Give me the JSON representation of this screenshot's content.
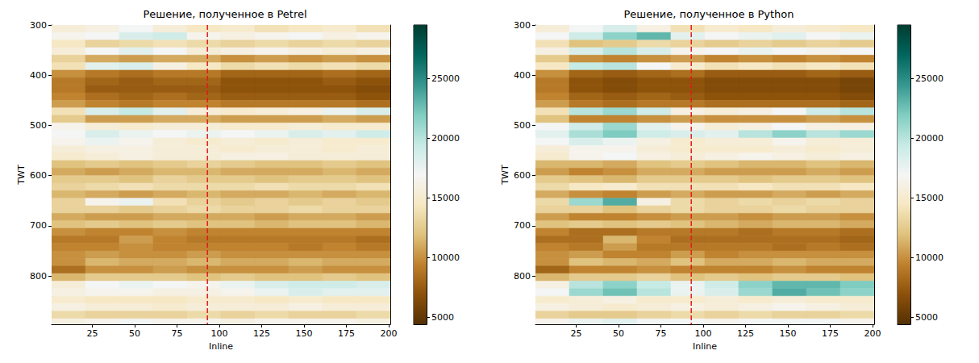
{
  "chart_data": [
    {
      "type": "heatmap",
      "title": "Решение, полученное в Petrel",
      "xlabel": "Inline",
      "ylabel": "TWT",
      "xlim": [
        1,
        201
      ],
      "ylim": [
        300,
        896
      ],
      "xticks": [
        25,
        50,
        75,
        100,
        125,
        150,
        175,
        200
      ],
      "yticks": [
        300,
        400,
        500,
        600,
        700,
        800
      ],
      "x": [
        11,
        31,
        51,
        71,
        91,
        111,
        131,
        151,
        171,
        191
      ],
      "y": [
        307.5,
        322.5,
        337.5,
        352.5,
        367.5,
        382.5,
        397.5,
        412.5,
        427.5,
        442.5,
        457.5,
        472.5,
        487.5,
        502.5,
        517.5,
        532.5,
        547.5,
        562.5,
        577.5,
        592.5,
        607.5,
        622.5,
        637.5,
        652.5,
        667.5,
        682.5,
        697.5,
        712.5,
        727.5,
        742.5,
        757.5,
        772.5,
        787.5,
        802.5,
        817.5,
        832.5,
        847.5,
        862.5,
        877.5,
        892.5
      ],
      "values": [
        [
          15500,
          16000,
          17000,
          15500,
          14500,
          15000,
          14000,
          14500,
          15000,
          14000
        ],
        [
          16500,
          17000,
          18500,
          19000,
          16500,
          16000,
          16500,
          17000,
          16000,
          16500
        ],
        [
          14500,
          13000,
          13500,
          14000,
          13500,
          13000,
          13500,
          13000,
          13500,
          13000
        ],
        [
          15500,
          17000,
          18000,
          17000,
          15500,
          16000,
          16500,
          16000,
          15500,
          16000
        ],
        [
          13000,
          11000,
          10500,
          11000,
          11000,
          10000,
          10500,
          10000,
          10500,
          10000
        ],
        [
          14000,
          18000,
          18500,
          16000,
          14500,
          13500,
          14000,
          13500,
          14000,
          13500
        ],
        [
          10000,
          9000,
          8500,
          9000,
          9000,
          8000,
          8000,
          8000,
          8500,
          8000
        ],
        [
          9000,
          8000,
          7500,
          8000,
          8000,
          7000,
          7000,
          7000,
          7500,
          7000
        ],
        [
          9000,
          7500,
          7500,
          7500,
          7500,
          7000,
          7000,
          7000,
          7000,
          6500
        ],
        [
          9500,
          8500,
          8000,
          8500,
          8000,
          7500,
          7500,
          7500,
          7500,
          7000
        ],
        [
          10500,
          9500,
          9000,
          9500,
          9500,
          9000,
          9000,
          9000,
          9000,
          8500
        ],
        [
          14000,
          18500,
          19500,
          18000,
          15500,
          15000,
          15500,
          16000,
          17500,
          18500
        ],
        [
          12500,
          10500,
          10500,
          11000,
          11000,
          10500,
          10500,
          10500,
          11000,
          10500
        ],
        [
          16500,
          15500,
          15000,
          15500,
          15500,
          15000,
          15000,
          15500,
          15000,
          15000
        ],
        [
          17000,
          18500,
          17500,
          17000,
          17500,
          17000,
          17500,
          18500,
          18000,
          19000
        ],
        [
          16500,
          17500,
          16500,
          15500,
          15000,
          15500,
          15000,
          15500,
          15000,
          15000
        ],
        [
          15500,
          16000,
          16000,
          15500,
          15500,
          15000,
          15500,
          15500,
          15000,
          15500
        ],
        [
          15000,
          15500,
          16000,
          15500,
          15500,
          16000,
          16000,
          15500,
          15500,
          15500
        ],
        [
          12000,
          12500,
          12000,
          12500,
          13000,
          12500,
          12000,
          12000,
          12500,
          12000
        ],
        [
          11000,
          10500,
          11000,
          11500,
          11500,
          11000,
          11000,
          11000,
          11500,
          11000
        ],
        [
          12500,
          12500,
          12000,
          13000,
          12500,
          12500,
          12000,
          12500,
          12500,
          12000
        ],
        [
          13000,
          13500,
          14000,
          13500,
          13500,
          13500,
          14000,
          13500,
          13500,
          14000
        ],
        [
          11500,
          11000,
          10500,
          11000,
          11500,
          11000,
          11000,
          11500,
          11000,
          11500
        ],
        [
          13000,
          16500,
          17500,
          14000,
          13000,
          12500,
          13000,
          12500,
          13000,
          12500
        ],
        [
          13000,
          13000,
          12500,
          13000,
          13500,
          13000,
          13000,
          13500,
          13000,
          13000
        ],
        [
          11000,
          10500,
          10500,
          11000,
          11000,
          11000,
          10500,
          11000,
          11000,
          10500
        ],
        [
          12000,
          12500,
          12000,
          12500,
          12000,
          12000,
          11500,
          12000,
          12000,
          11500
        ],
        [
          10000,
          9500,
          9500,
          10000,
          9500,
          9500,
          9500,
          9500,
          9500,
          9500
        ],
        [
          9000,
          9000,
          10500,
          9500,
          9000,
          9000,
          9000,
          9000,
          9000,
          8500
        ],
        [
          9500,
          9500,
          10000,
          9500,
          9500,
          9500,
          9500,
          9000,
          9500,
          9000
        ],
        [
          10000,
          10500,
          10000,
          10000,
          10500,
          10000,
          10000,
          10000,
          10000,
          10000
        ],
        [
          10000,
          11500,
          11000,
          11000,
          11500,
          11000,
          11000,
          11500,
          11000,
          11000
        ],
        [
          8500,
          10000,
          10000,
          10500,
          10000,
          10000,
          10000,
          10500,
          10000,
          10000
        ],
        [
          11500,
          12500,
          12500,
          12500,
          12000,
          12500,
          12000,
          12000,
          12500,
          12000
        ],
        [
          15500,
          17000,
          17500,
          17000,
          16500,
          17500,
          18500,
          19000,
          19000,
          18500
        ],
        [
          16000,
          16500,
          16500,
          16000,
          16000,
          16500,
          17500,
          18500,
          18000,
          18000
        ],
        [
          15000,
          14500,
          14500,
          14500,
          15000,
          15000,
          14500,
          15000,
          14500,
          14500
        ],
        [
          16000,
          15500,
          15500,
          15000,
          15500,
          15500,
          15500,
          16000,
          15500,
          15500
        ],
        [
          13500,
          13000,
          13000,
          13000,
          13500,
          13000,
          13500,
          13000,
          13000,
          13500
        ],
        [
          16000,
          16500,
          17000,
          16500,
          16500,
          16000,
          16500,
          16500,
          16500,
          16000
        ]
      ],
      "colorbar_range": [
        4400,
        29500
      ],
      "colorbar_ticks": [
        5000,
        10000,
        15000,
        20000,
        25000
      ],
      "vline": {
        "x": 93,
        "color": "#e41a1c",
        "line_style": "dashed"
      }
    },
    {
      "type": "heatmap",
      "title": "Решение, полученное в Python",
      "xlabel": "Inline",
      "ylabel": "TWT",
      "xlim": [
        1,
        201
      ],
      "ylim": [
        300,
        896
      ],
      "xticks": [
        25,
        50,
        75,
        100,
        125,
        150,
        175,
        200
      ],
      "yticks": [
        300,
        400,
        500,
        600,
        700,
        800
      ],
      "x": [
        11,
        31,
        51,
        71,
        91,
        111,
        131,
        151,
        171,
        191
      ],
      "y": [
        307.5,
        322.5,
        337.5,
        352.5,
        367.5,
        382.5,
        397.5,
        412.5,
        427.5,
        442.5,
        457.5,
        472.5,
        487.5,
        502.5,
        517.5,
        532.5,
        547.5,
        562.5,
        577.5,
        592.5,
        607.5,
        622.5,
        637.5,
        652.5,
        667.5,
        682.5,
        697.5,
        712.5,
        727.5,
        742.5,
        757.5,
        772.5,
        787.5,
        802.5,
        817.5,
        832.5,
        847.5,
        862.5,
        877.5,
        892.5
      ],
      "values": [
        [
          15500,
          17000,
          18500,
          16000,
          14000,
          15000,
          14500,
          15500,
          15000,
          14500
        ],
        [
          17000,
          19000,
          21500,
          23000,
          18000,
          17000,
          17500,
          18000,
          17000,
          17500
        ],
        [
          14000,
          12000,
          12500,
          13500,
          13000,
          12500,
          13000,
          12500,
          13000,
          12500
        ],
        [
          16000,
          18500,
          20000,
          18500,
          16500,
          17000,
          17500,
          17000,
          16500,
          17000
        ],
        [
          12500,
          10000,
          9500,
          10000,
          10500,
          9500,
          10000,
          9500,
          10000,
          9500
        ],
        [
          14500,
          19500,
          20000,
          17000,
          15000,
          14000,
          14500,
          14000,
          14500,
          14000
        ],
        [
          10000,
          8000,
          7500,
          8000,
          8500,
          7500,
          7500,
          7500,
          8000,
          7500
        ],
        [
          9000,
          7000,
          6500,
          7000,
          7000,
          6500,
          6500,
          6500,
          6500,
          6000
        ],
        [
          9000,
          7000,
          6500,
          7000,
          7000,
          6500,
          6500,
          6500,
          6500,
          6000
        ],
        [
          9500,
          8000,
          7500,
          8000,
          7500,
          7000,
          7000,
          7000,
          7000,
          6500
        ],
        [
          10500,
          9000,
          8500,
          9000,
          9000,
          8500,
          8500,
          8500,
          8500,
          8000
        ],
        [
          14000,
          20000,
          21000,
          19000,
          16000,
          15500,
          16000,
          17000,
          19000,
          20000
        ],
        [
          12000,
          9500,
          9500,
          10000,
          10500,
          10000,
          10000,
          10000,
          10500,
          10000
        ],
        [
          17000,
          19000,
          21000,
          18000,
          16500,
          15500,
          16000,
          17000,
          16000,
          16000
        ],
        [
          18000,
          20500,
          22000,
          19000,
          18500,
          18000,
          20000,
          21500,
          20000,
          21000
        ],
        [
          17000,
          18500,
          17500,
          16000,
          15000,
          15500,
          15500,
          16500,
          15500,
          15500
        ],
        [
          15500,
          16500,
          16500,
          15500,
          15000,
          15000,
          15000,
          15500,
          15000,
          15500
        ],
        [
          15000,
          16500,
          17000,
          16000,
          15500,
          16000,
          16500,
          16000,
          15500,
          16000
        ],
        [
          11500,
          11500,
          11000,
          12000,
          12500,
          12000,
          11500,
          11500,
          12000,
          11500
        ],
        [
          10500,
          9500,
          10000,
          11000,
          11000,
          10500,
          10500,
          10500,
          11000,
          10500
        ],
        [
          12500,
          12000,
          11500,
          12500,
          12500,
          12500,
          12000,
          12500,
          12500,
          12000
        ],
        [
          13500,
          14500,
          15000,
          14000,
          14000,
          14000,
          14500,
          14000,
          14000,
          14500
        ],
        [
          11000,
          10000,
          9500,
          10500,
          11000,
          10500,
          10500,
          11000,
          10500,
          11000
        ],
        [
          13500,
          21000,
          23500,
          16000,
          13500,
          13000,
          13500,
          13000,
          13500,
          13000
        ],
        [
          13000,
          13000,
          12000,
          13000,
          13500,
          13000,
          13000,
          13500,
          13000,
          13000
        ],
        [
          10500,
          9500,
          9500,
          10000,
          10500,
          10500,
          10000,
          10500,
          10500,
          10000
        ],
        [
          12000,
          12500,
          12000,
          12500,
          12000,
          11500,
          11000,
          11500,
          11500,
          11000
        ],
        [
          9500,
          8500,
          8500,
          9000,
          9000,
          9000,
          8500,
          9000,
          9000,
          8500
        ],
        [
          8500,
          8500,
          11500,
          9500,
          8500,
          8500,
          8500,
          8500,
          8500,
          8000
        ],
        [
          9500,
          9000,
          10500,
          9000,
          9000,
          9000,
          9000,
          8500,
          9000,
          8500
        ],
        [
          10000,
          10500,
          9500,
          9500,
          10500,
          9500,
          10000,
          10000,
          10000,
          10000
        ],
        [
          10000,
          12000,
          11500,
          11000,
          12000,
          11000,
          11000,
          11500,
          11000,
          11000
        ],
        [
          8000,
          9500,
          9500,
          10000,
          9500,
          9500,
          9500,
          10000,
          9500,
          9500
        ],
        [
          11500,
          12500,
          12500,
          13000,
          12000,
          12500,
          12000,
          12500,
          12500,
          12000
        ],
        [
          16000,
          20000,
          21500,
          19500,
          17500,
          19000,
          21500,
          23000,
          23000,
          22000
        ],
        [
          17000,
          21000,
          22500,
          20000,
          17500,
          18500,
          21000,
          23500,
          22500,
          21500
        ],
        [
          15000,
          15500,
          16000,
          15000,
          15000,
          15500,
          15000,
          15500,
          15000,
          15000
        ],
        [
          16000,
          15500,
          15000,
          15500,
          16000,
          15500,
          16000,
          16500,
          16000,
          15500
        ],
        [
          13000,
          12500,
          12500,
          13000,
          13500,
          13000,
          13500,
          13000,
          13000,
          13500
        ],
        [
          16500,
          17500,
          18000,
          17000,
          17000,
          16500,
          17000,
          17000,
          17000,
          16500
        ]
      ],
      "colorbar_range": [
        4400,
        29500
      ],
      "colorbar_ticks": [
        5000,
        10000,
        15000,
        20000,
        25000
      ],
      "vline": {
        "x": 93,
        "color": "#e41a1c",
        "line_style": "dashed"
      }
    }
  ]
}
